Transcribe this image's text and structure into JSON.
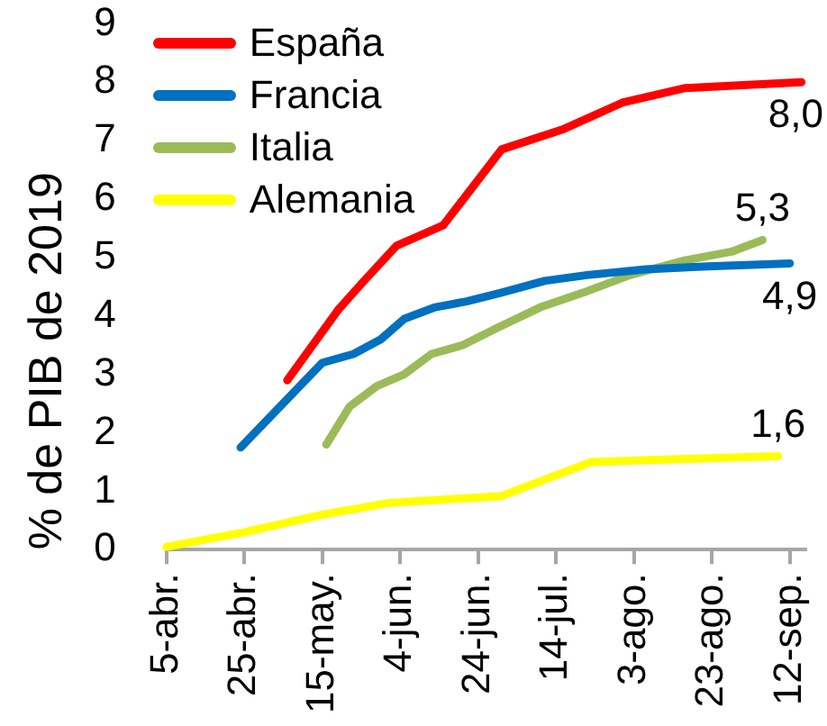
{
  "chart_data": {
    "type": "line",
    "ylabel": "% de PIB de 2019",
    "xlim": [
      "--04-05",
      "--09-16"
    ],
    "xticks": [
      {
        "value": "--04-05",
        "label": "5-abr."
      },
      {
        "value": "--04-25",
        "label": "25-abr."
      },
      {
        "value": "--05-15",
        "label": "15-may."
      },
      {
        "value": "--06-04",
        "label": "4-jun."
      },
      {
        "value": "--06-24",
        "label": "24-jun."
      },
      {
        "value": "--07-14",
        "label": "14-jul."
      },
      {
        "value": "--08-03",
        "label": "3-ago."
      },
      {
        "value": "--08-23",
        "label": "23-ago."
      },
      {
        "value": "--09-12",
        "label": "12-sep."
      }
    ],
    "ylim": [
      0,
      9
    ],
    "yticks": [
      0,
      1,
      2,
      3,
      4,
      5,
      6,
      7,
      8,
      9
    ],
    "grid": false,
    "legend": "top left",
    "marker": "none",
    "series": [
      {
        "name": "España",
        "color": "#ff0000",
        "x": [
          "--05-06",
          "--05-19",
          "--05-25",
          "--06-03",
          "--06-15",
          "--06-30",
          "--07-16",
          "--07-31",
          "--08-16",
          "--08-31",
          "--09-15"
        ],
        "values": [
          2.9,
          4.1,
          4.55,
          5.2,
          5.55,
          6.85,
          7.2,
          7.65,
          7.9,
          7.95,
          8.0
        ],
        "value_labels": [
          null,
          null,
          null,
          null,
          null,
          null,
          null,
          null,
          null,
          null,
          "8,0"
        ]
      },
      {
        "name": "Francia",
        "color": "#0070c0",
        "x": [
          "--04-24",
          "--05-15",
          "--05-23",
          "--05-30",
          "--06-05",
          "--06-13",
          "--06-21",
          "--06-30",
          "--07-11",
          "--07-22",
          "--08-06",
          "--08-22",
          "--09-12"
        ],
        "values": [
          1.75,
          3.2,
          3.35,
          3.6,
          3.95,
          4.15,
          4.25,
          4.4,
          4.6,
          4.7,
          4.8,
          4.85,
          4.9
        ],
        "value_labels": [
          null,
          null,
          null,
          null,
          null,
          null,
          null,
          null,
          null,
          null,
          null,
          null,
          "4,9"
        ]
      },
      {
        "name": "Italia",
        "color": "#9bbb59",
        "x": [
          "--05-16",
          "--05-22",
          "--05-29",
          "--06-05",
          "--06-12",
          "--06-20",
          "--06-29",
          "--07-10",
          "--07-21",
          "--08-02",
          "--08-16",
          "--08-28",
          "--09-05"
        ],
        "values": [
          1.8,
          2.45,
          2.8,
          3.0,
          3.35,
          3.5,
          3.8,
          4.15,
          4.4,
          4.7,
          4.95,
          5.1,
          5.3
        ],
        "value_labels": [
          null,
          null,
          null,
          null,
          null,
          null,
          null,
          null,
          null,
          null,
          null,
          null,
          "5,3"
        ]
      },
      {
        "name": "Alemania",
        "color": "#ffff00",
        "x": [
          "--04-05",
          "--04-25",
          "--05-15",
          "--06-01",
          "--06-30",
          "--07-23",
          "--08-14",
          "--09-09"
        ],
        "values": [
          0.05,
          0.3,
          0.6,
          0.8,
          0.92,
          1.5,
          1.55,
          1.6
        ],
        "value_labels": [
          null,
          null,
          null,
          null,
          null,
          null,
          null,
          "1,6"
        ]
      }
    ]
  }
}
